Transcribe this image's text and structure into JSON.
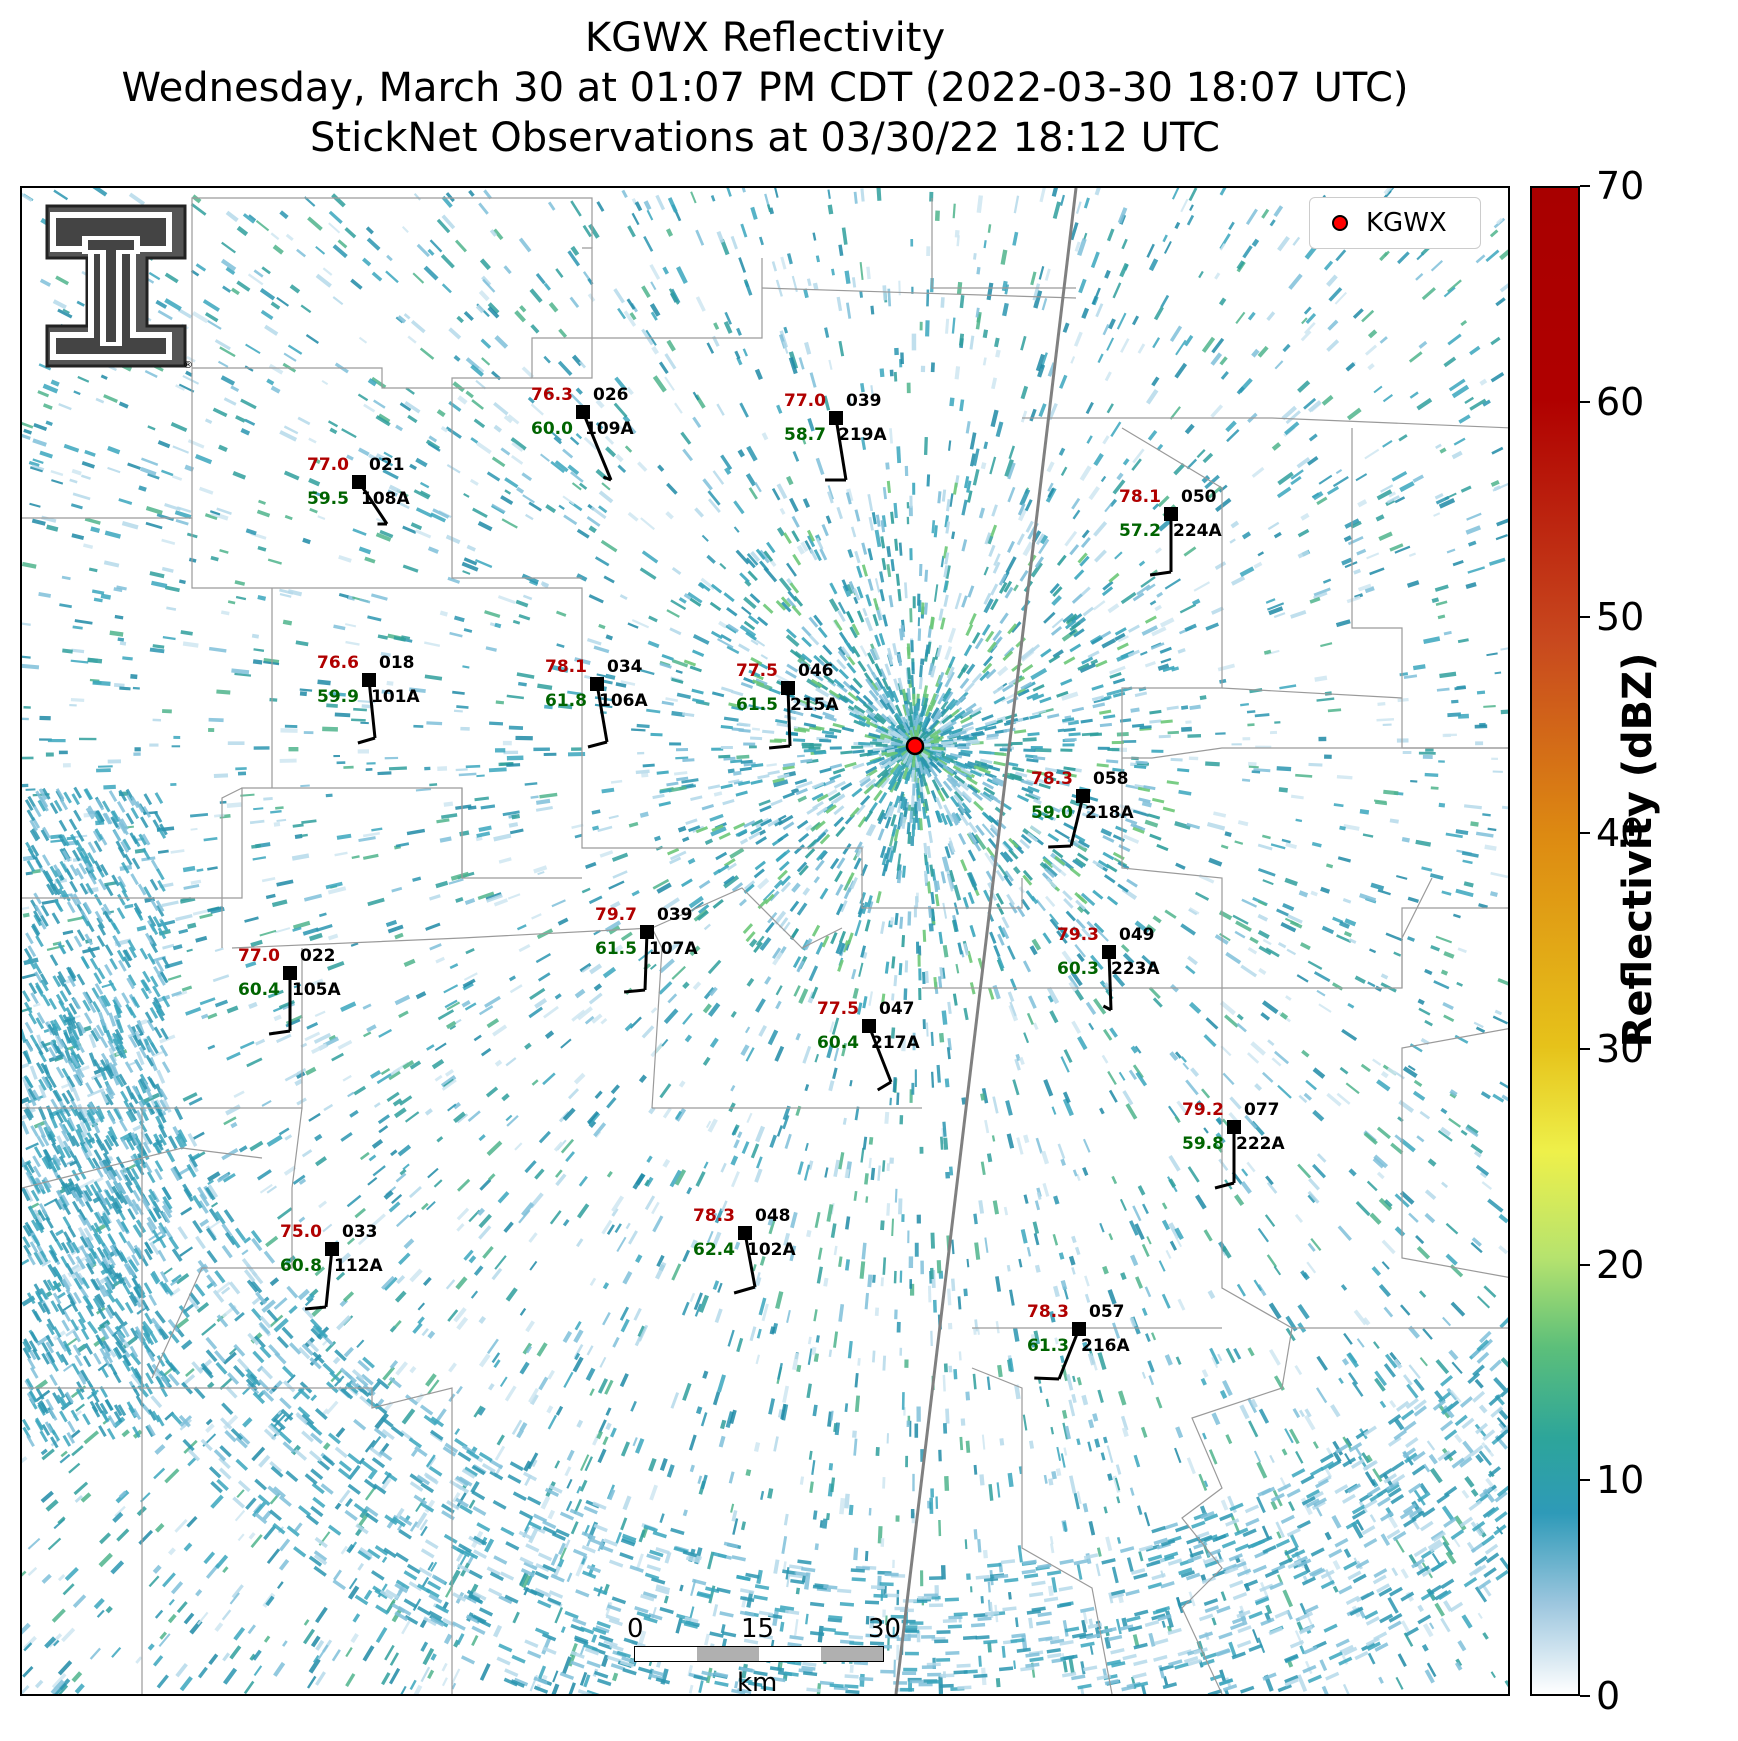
{
  "title": {
    "line1": "KGWX Reflectivity",
    "line2": "Wednesday, March 30 at 01:07 PM CDT (2022-03-30 18:07 UTC)",
    "line3": "StickNet Observations at 03/30/22 18:12 UTC"
  },
  "legend": {
    "label": "KGWX",
    "marker_color": "#ff0000"
  },
  "colorbar": {
    "label": "Reflectivity (dBZ)",
    "ticks": [
      "0",
      "10",
      "20",
      "30",
      "40",
      "50",
      "60",
      "70"
    ],
    "range": [
      0,
      70
    ]
  },
  "scalebar": {
    "ticks": [
      "0",
      "15",
      "30"
    ],
    "unit": "km"
  },
  "logo": {
    "name": "Texas Tech double-T logo",
    "mark": "®"
  },
  "colors": {
    "temperature": "#b00000",
    "dewpoint": "#006400",
    "station": "#000000",
    "radar": "#ff0000"
  },
  "stations": [
    {
      "id": "109A",
      "temp": "76.3",
      "dew": "60.0",
      "pressure": "026"
    },
    {
      "id": "219A",
      "temp": "77.0",
      "dew": "58.7",
      "pressure": "039"
    },
    {
      "id": "108A",
      "temp": "77.0",
      "dew": "59.5",
      "pressure": "021"
    },
    {
      "id": "224A",
      "temp": "78.1",
      "dew": "57.2",
      "pressure": "050"
    },
    {
      "id": "101A",
      "temp": "76.6",
      "dew": "59.9",
      "pressure": "018"
    },
    {
      "id": "106A",
      "temp": "78.1",
      "dew": "61.8",
      "pressure": "034"
    },
    {
      "id": "215A",
      "temp": "77.5",
      "dew": "61.5",
      "pressure": "046"
    },
    {
      "id": "218A",
      "temp": "78.3",
      "dew": "59.0",
      "pressure": "058"
    },
    {
      "id": "107A",
      "temp": "79.7",
      "dew": "61.5",
      "pressure": "039"
    },
    {
      "id": "223A",
      "temp": "79.3",
      "dew": "60.3",
      "pressure": "049"
    },
    {
      "id": "105A",
      "temp": "77.0",
      "dew": "60.4",
      "pressure": "022"
    },
    {
      "id": "217A",
      "temp": "77.5",
      "dew": "60.4",
      "pressure": "047"
    },
    {
      "id": "222A",
      "temp": "79.2",
      "dew": "59.8",
      "pressure": "077"
    },
    {
      "id": "102A",
      "temp": "78.3",
      "dew": "62.4",
      "pressure": "048"
    },
    {
      "id": "112A",
      "temp": "75.0",
      "dew": "60.8",
      "pressure": "033"
    },
    {
      "id": "216A",
      "temp": "78.3",
      "dew": "61.3",
      "pressure": "057"
    }
  ]
}
